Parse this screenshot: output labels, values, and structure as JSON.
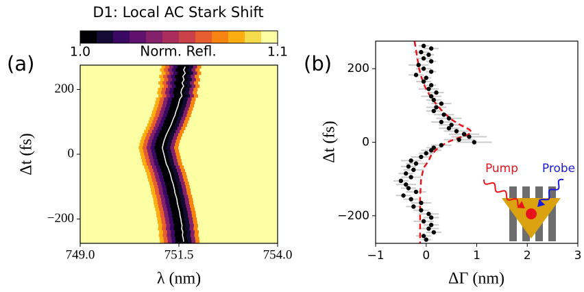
{
  "chart_data": [
    {
      "type": "heatmap",
      "title": "D1: Local AC Stark Shift",
      "panel_label": "(a)",
      "xlabel": "λ (nm)",
      "ylabel": "Δt (fs)",
      "xlim": [
        749,
        754
      ],
      "xticks": [
        {
          "value": 749,
          "label": "749.0"
        },
        {
          "value": 751.5,
          "label": "751.5"
        },
        {
          "value": 754,
          "label": "754.0"
        }
      ],
      "ylim": [
        -275,
        275
      ],
      "yticks": [
        {
          "value": -200,
          "label": "−200"
        },
        0,
        200
      ],
      "delays": [
        270,
        260,
        250,
        240,
        230,
        220,
        210,
        200,
        190,
        180,
        170,
        160,
        150,
        140,
        130,
        120,
        110,
        100,
        90,
        80,
        70,
        60,
        50,
        40,
        30,
        20,
        10,
        0,
        -10,
        -20,
        -30,
        -40,
        -50,
        -60,
        -70,
        -80,
        -90,
        -100,
        -110,
        -120,
        -130,
        -140,
        -150,
        -160,
        -170,
        -180,
        -190,
        -200,
        -210,
        -220,
        -230,
        -240,
        -250,
        -260,
        -270
      ],
      "centers": [
        751.66,
        751.62,
        751.66,
        751.6,
        751.63,
        751.58,
        751.62,
        751.57,
        751.55,
        751.58,
        751.52,
        751.5,
        751.48,
        751.45,
        751.42,
        751.4,
        751.36,
        751.33,
        751.3,
        751.26,
        751.22,
        751.18,
        751.15,
        751.12,
        751.1,
        751.08,
        751.1,
        751.12,
        751.14,
        751.16,
        751.18,
        751.22,
        751.25,
        751.28,
        751.3,
        751.32,
        751.35,
        751.37,
        751.39,
        751.4,
        751.43,
        751.45,
        751.46,
        751.48,
        751.5,
        751.52,
        751.53,
        751.55,
        751.56,
        751.58,
        751.57,
        751.6,
        751.59,
        751.61,
        751.62
      ],
      "line_color": "#ffffff",
      "profile": {
        "offsets": [
          -0.65,
          -0.55,
          -0.45,
          -0.35,
          -0.25,
          -0.15,
          -0.05,
          0.05,
          0.15,
          0.25,
          0.35
        ],
        "values": [
          1.095,
          1.08,
          1.06,
          1.04,
          1.02,
          1.005,
          1.0,
          1.0,
          1.012,
          1.04,
          1.075
        ]
      },
      "background": 1.1,
      "colorbar": {
        "label": "Norm. Refl.",
        "lim": [
          1.0,
          1.1
        ],
        "ticks": [
          {
            "value": 1.0,
            "label": "1.0"
          },
          {
            "value": 1.1,
            "label": "1.1"
          }
        ],
        "colors": [
          "#000004",
          "#140b34",
          "#390963",
          "#5f136e",
          "#85216b",
          "#a92e5e",
          "#cb4149",
          "#e65d2f",
          "#f78311",
          "#fcad12",
          "#f5db4b",
          "#fcffa4"
        ]
      }
    },
    {
      "type": "scatter",
      "panel_label": "(b)",
      "xlabel": "ΔΓ (nm)",
      "ylabel": "Δt (fs)",
      "xlim": [
        -1,
        3
      ],
      "xticks": [
        {
          "value": -1,
          "label": "−1"
        },
        0,
        1,
        2,
        3
      ],
      "ylim": [
        -275,
        275
      ],
      "yticks": [
        {
          "value": -200,
          "label": "−200"
        },
        0,
        200
      ],
      "points": {
        "color": "#000000",
        "err_color": "#cccccc",
        "y": [
          262,
          255,
          245,
          238,
          228,
          220,
          210,
          200,
          192,
          183,
          175,
          165,
          155,
          145,
          135,
          125,
          115,
          105,
          95,
          85,
          75,
          65,
          55,
          47,
          38,
          30,
          22,
          15,
          7,
          0,
          -8,
          -15,
          -22,
          -30,
          -40,
          -50,
          -58,
          -66,
          -75,
          -85,
          -95,
          -105,
          -115,
          -125,
          -135,
          -145,
          -155,
          -165,
          -175,
          -185,
          -195,
          -205,
          -215,
          -225,
          -235,
          -245,
          -255,
          -265
        ],
        "x": [
          -0.05,
          0.1,
          -0.1,
          0.05,
          -0.05,
          0.1,
          -0.15,
          -0.05,
          0.1,
          -0.2,
          0.0,
          -0.05,
          0.1,
          0.05,
          0.2,
          0.1,
          0.15,
          0.3,
          0.2,
          0.15,
          0.35,
          0.45,
          0.3,
          0.5,
          0.45,
          0.6,
          0.75,
          0.85,
          0.65,
          0.95,
          0.3,
          0.15,
          0.1,
          0.0,
          -0.1,
          -0.3,
          -0.2,
          -0.35,
          -0.25,
          -0.4,
          -0.3,
          -0.5,
          -0.4,
          -0.35,
          -0.2,
          -0.45,
          -0.3,
          -0.1,
          -0.25,
          -0.1,
          0.05,
          0.1,
          -0.05,
          0.1,
          0.05,
          0.15,
          -0.05,
          0.0
        ],
        "xerr": [
          0.1,
          0.15,
          0.15,
          0.1,
          0.15,
          0.1,
          0.2,
          0.15,
          0.1,
          0.15,
          0.1,
          0.15,
          0.1,
          0.2,
          0.15,
          0.2,
          0.15,
          0.2,
          0.2,
          0.15,
          0.2,
          0.25,
          0.2,
          0.25,
          0.2,
          0.25,
          0.3,
          0.35,
          0.3,
          0.35,
          0.2,
          0.15,
          0.2,
          0.15,
          0.2,
          0.2,
          0.2,
          0.15,
          0.2,
          0.15,
          0.2,
          0.15,
          0.2,
          0.15,
          0.2,
          0.15,
          0.15,
          0.2,
          0.15,
          0.15,
          0.2,
          0.15,
          0.2,
          0.15,
          0.2,
          0.15,
          0.15,
          0.1
        ]
      },
      "fit": {
        "color": "#e8141b",
        "y": [
          275,
          250,
          225,
          200,
          175,
          150,
          125,
          100,
          80,
          60,
          45,
          35,
          28,
          20,
          10,
          0,
          -10,
          -20,
          -35,
          -50,
          -70,
          -100,
          -150,
          -200,
          -250,
          -275
        ],
        "x": [
          -0.23,
          -0.2,
          -0.17,
          -0.14,
          -0.09,
          -0.02,
          0.08,
          0.22,
          0.35,
          0.52,
          0.7,
          0.85,
          0.9,
          0.82,
          0.6,
          0.42,
          0.3,
          0.2,
          0.1,
          0.05,
          -0.05,
          -0.1,
          -0.12,
          -0.12,
          -0.12,
          -0.12
        ]
      },
      "inset": {
        "pump": "Pump",
        "probe": "Probe"
      }
    }
  ]
}
